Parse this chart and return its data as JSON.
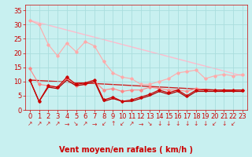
{
  "xlabel": "Vent moyen/en rafales ( km/h )",
  "bg_color": "#c8f0f0",
  "grid_color": "#aadddd",
  "xlim": [
    -0.5,
    23.5
  ],
  "ylim": [
    0,
    37
  ],
  "yticks": [
    0,
    5,
    10,
    15,
    20,
    25,
    30,
    35
  ],
  "xticks": [
    0,
    1,
    2,
    3,
    4,
    5,
    6,
    7,
    8,
    9,
    10,
    11,
    12,
    13,
    14,
    15,
    16,
    17,
    18,
    19,
    20,
    21,
    22,
    23
  ],
  "line_pink_trend": {
    "x": [
      0,
      23
    ],
    "y": [
      31.5,
      12.0
    ],
    "color": "#ffbbcc",
    "lw": 1.0
  },
  "line_red_trend": {
    "x": [
      0,
      23
    ],
    "y": [
      10.5,
      6.5
    ],
    "color": "#cc2222",
    "lw": 1.0
  },
  "line_pink": {
    "y": [
      31.5,
      30.0,
      23.0,
      19.0,
      23.5,
      20.5,
      24.0,
      22.5,
      17.0,
      13.0,
      11.5,
      11.0,
      9.0,
      9.0,
      10.0,
      11.0,
      13.0,
      13.5,
      14.0,
      11.0,
      12.0,
      12.5,
      12.0,
      12.5
    ],
    "color": "#ffaaaa",
    "lw": 0.8,
    "marker": "D",
    "ms": 1.8
  },
  "line_midpink": {
    "y": [
      14.5,
      9.0,
      8.5,
      8.0,
      11.0,
      8.5,
      9.0,
      10.0,
      7.0,
      7.5,
      6.5,
      7.0,
      7.0,
      8.0,
      7.5,
      7.0,
      7.0,
      6.5,
      7.5,
      7.0,
      7.0,
      7.0,
      7.0,
      7.0
    ],
    "color": "#ff8888",
    "lw": 0.8,
    "marker": "D",
    "ms": 1.8
  },
  "line_darkred": {
    "y": [
      10.5,
      3.0,
      8.5,
      8.0,
      11.5,
      9.0,
      9.5,
      10.5,
      3.5,
      4.5,
      3.0,
      3.5,
      4.5,
      5.5,
      7.0,
      6.0,
      7.0,
      5.0,
      7.0,
      7.0,
      7.0,
      7.0,
      7.0,
      7.0
    ],
    "color": "#cc0000",
    "lw": 0.9,
    "marker": "D",
    "ms": 1.8
  },
  "line_darkred2": {
    "y": [
      10.5,
      3.0,
      8.0,
      7.5,
      10.5,
      8.5,
      9.0,
      10.0,
      3.0,
      4.0,
      3.0,
      3.0,
      4.0,
      5.0,
      6.5,
      5.5,
      6.5,
      4.5,
      6.5,
      6.5,
      6.5,
      6.5,
      6.5,
      6.5
    ],
    "color": "#aa0000",
    "lw": 0.9
  },
  "arrows": [
    "↗",
    "↗",
    "↗",
    "↗",
    "→",
    "↘",
    "↗",
    "→",
    "↙",
    "↑",
    "↙",
    "↗",
    "→",
    "↘",
    "↓",
    "↓",
    "↓",
    "↓",
    "↓",
    "↓",
    "↙",
    "↓",
    "↙"
  ],
  "xlabel_color": "#cc0000",
  "xlabel_fontsize": 7,
  "tick_color": "#cc0000",
  "tick_fontsize": 6,
  "arrow_color": "#cc2222",
  "arrow_fontsize": 5.5
}
